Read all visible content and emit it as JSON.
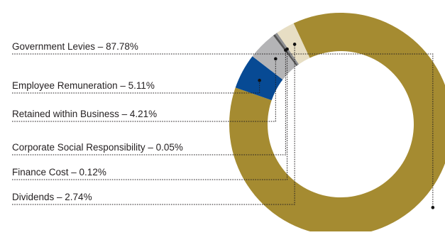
{
  "chart_data": {
    "type": "pie",
    "variant": "donut",
    "categories": [
      "Government Levies",
      "Employee Remuneration",
      "Retained within Business",
      "Corporate Social Responsibility",
      "Finance Cost",
      "Dividends"
    ],
    "values": [
      87.78,
      5.11,
      4.21,
      0.05,
      0.12,
      2.74
    ],
    "labels": [
      "Government Levies – 87.78%",
      "Employee Remuneration – 5.11%",
      "Retained within Business – 4.21%",
      "Corporate Social Responsibility – 0.05%",
      "Finance Cost – 0.12%",
      "Dividends – 2.74%"
    ],
    "colors": [
      "#a58b31",
      "#074a94",
      "#b4b4b6",
      "#565656",
      "#8e8f92",
      "#e7dec4"
    ],
    "legend": "left"
  }
}
